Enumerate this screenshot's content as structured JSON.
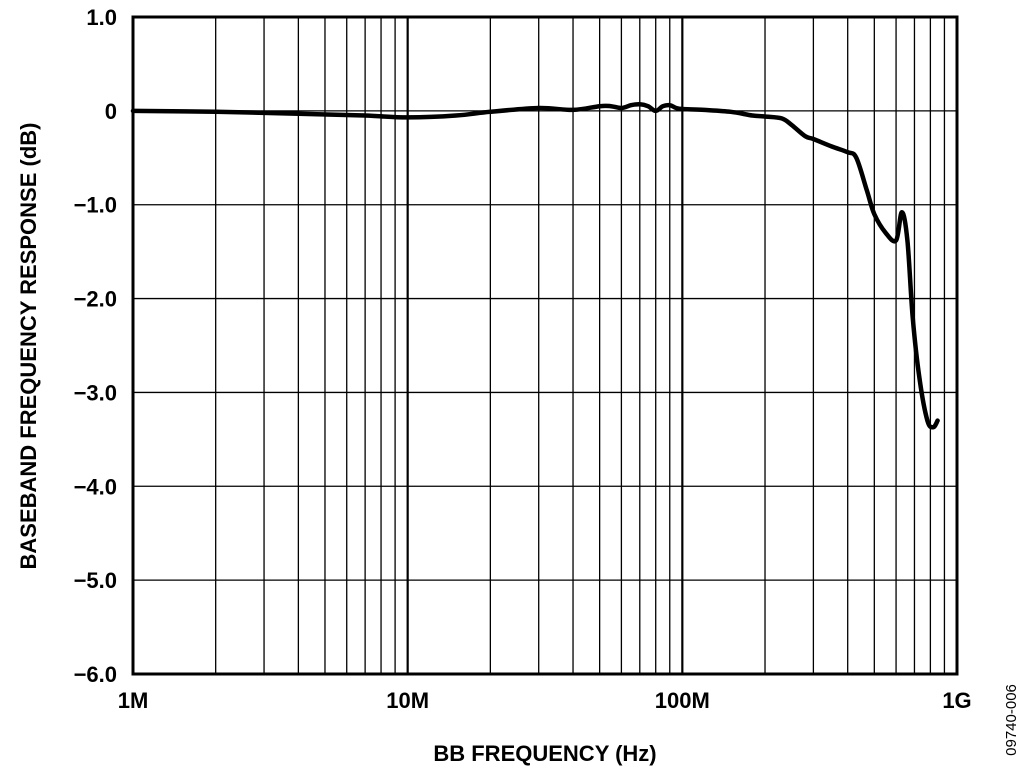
{
  "chart_data": {
    "type": "line",
    "xscale": "log",
    "xlabel": "BB FREQUENCY (Hz)",
    "ylabel": "BASEBAND FREQUENCY RESPONSE (dB)",
    "xlim": [
      1000000,
      1000000000
    ],
    "ylim": [
      -6.0,
      1.0
    ],
    "x_ticks": [
      {
        "value": 1000000,
        "label": "1M"
      },
      {
        "value": 10000000,
        "label": "10M"
      },
      {
        "value": 100000000,
        "label": "100M"
      },
      {
        "value": 1000000000,
        "label": "1G"
      }
    ],
    "y_ticks": [
      {
        "value": 1.0,
        "label": "1.0"
      },
      {
        "value": 0,
        "label": "0"
      },
      {
        "value": -1.0,
        "label": "−1.0"
      },
      {
        "value": -2.0,
        "label": "−2.0"
      },
      {
        "value": -3.0,
        "label": "−3.0"
      },
      {
        "value": -4.0,
        "label": "−4.0"
      },
      {
        "value": -5.0,
        "label": "−5.0"
      },
      {
        "value": -6.0,
        "label": "−6.0"
      }
    ],
    "grid": true,
    "figure_id": "09740-006",
    "series": [
      {
        "color": "#000000",
        "x": [
          1000000,
          2000000,
          4000000,
          7000000,
          10000000,
          15000000,
          20000000,
          30000000,
          40000000,
          50000000,
          55000000,
          60000000,
          65000000,
          70000000,
          75000000,
          80000000,
          85000000,
          90000000,
          95000000,
          100000000,
          120000000,
          150000000,
          180000000,
          200000000,
          230000000,
          250000000,
          280000000,
          300000000,
          350000000,
          400000000,
          430000000,
          470000000,
          500000000,
          550000000,
          600000000,
          630000000,
          660000000,
          690000000,
          730000000,
          780000000,
          820000000,
          850000000
        ],
        "y": [
          0.0,
          -0.01,
          -0.03,
          -0.05,
          -0.07,
          -0.05,
          -0.01,
          0.03,
          0.01,
          0.05,
          0.05,
          0.03,
          0.06,
          0.07,
          0.05,
          0.0,
          0.05,
          0.06,
          0.03,
          0.02,
          0.01,
          -0.01,
          -0.05,
          -0.06,
          -0.08,
          -0.15,
          -0.27,
          -0.3,
          -0.38,
          -0.44,
          -0.5,
          -0.85,
          -1.1,
          -1.3,
          -1.38,
          -1.08,
          -1.38,
          -2.2,
          -2.85,
          -3.3,
          -3.37,
          -3.3
        ]
      }
    ]
  }
}
